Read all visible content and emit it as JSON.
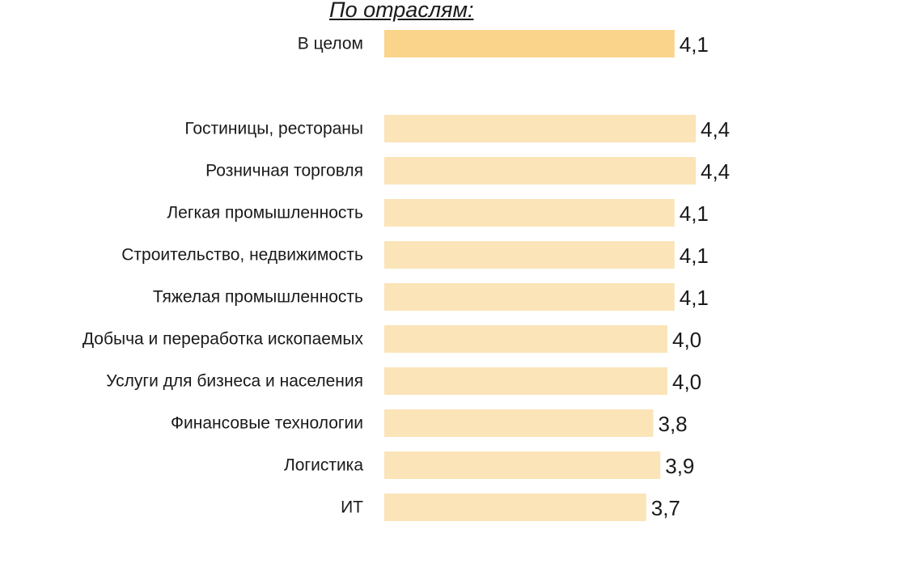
{
  "chart_data": {
    "type": "bar",
    "orientation": "horizontal",
    "title": "По отраслям:",
    "xlabel": "",
    "ylabel": "",
    "xlim": [
      0,
      4.4
    ],
    "grid": false,
    "legend": "none",
    "categories": [
      "В целом",
      "Гостиницы, рестораны",
      "Розничная торговля",
      "Легкая промышленность",
      "Строительство, недвижимость",
      "Тяжелая промышленность",
      "Добыча и переработка ископаемых",
      "Услуги для бизнеса и населения",
      "Финансовые технологии",
      "Логистика",
      "ИТ"
    ],
    "values": [
      4.1,
      4.4,
      4.4,
      4.1,
      4.1,
      4.1,
      4.0,
      4.0,
      3.8,
      3.9,
      3.7
    ],
    "value_labels": [
      "4,1",
      "4,4",
      "4,4",
      "4,1",
      "4,1",
      "4,1",
      "4,0",
      "4,0",
      "3,8",
      "3,9",
      "3,7"
    ],
    "colors": {
      "highlight": "#f9d48a",
      "bar": "#fbe4b8",
      "text": "#1a1a1a"
    }
  }
}
